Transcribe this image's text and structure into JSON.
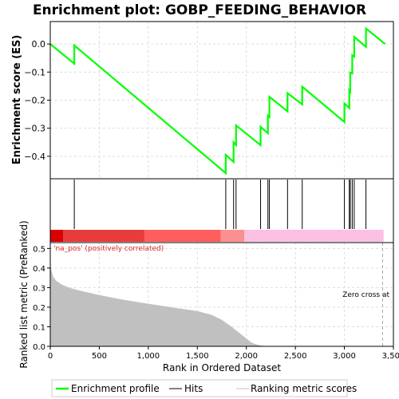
{
  "chart_data": {
    "title": "Enrichment plot: GOBP_FEEDING_BEHAVIOR",
    "xlabel": "Rank in Ordered Dataset",
    "xlim": [
      0,
      3500
    ],
    "xticks": [
      0,
      500,
      1000,
      1500,
      2000,
      2500,
      3000,
      3500
    ],
    "xtick_labels": [
      "0",
      "500",
      "1,000",
      "1,500",
      "2,000",
      "2,500",
      "3,000",
      "3,500"
    ],
    "panels": [
      {
        "name": "enrichment",
        "type": "line",
        "ylabel": "Enrichment score (ES)",
        "ylim": [
          -0.48,
          0.08
        ],
        "yticks": [
          -0.4,
          -0.3,
          -0.2,
          -0.1,
          0.0
        ],
        "ytick_labels": [
          "−0.4",
          "−0.3",
          "−0.2",
          "−0.1",
          "0.0"
        ],
        "grid": true,
        "series": [
          {
            "name": "Enrichment profile",
            "color": "#00ff00",
            "x": [
              0,
              245,
              245,
              1790,
              1790,
              1870,
              1870,
              1895,
              1895,
              2145,
              2145,
              2220,
              2220,
              2235,
              2235,
              2420,
              2420,
              2570,
              2570,
              3000,
              3000,
              3050,
              3050,
              3060,
              3060,
              3080,
              3080,
              3100,
              3100,
              3220,
              3220,
              3415
            ],
            "y": [
              0.0,
              -0.07,
              -0.005,
              -0.46,
              -0.395,
              -0.42,
              -0.35,
              -0.36,
              -0.29,
              -0.36,
              -0.295,
              -0.318,
              -0.255,
              -0.26,
              -0.188,
              -0.24,
              -0.175,
              -0.215,
              -0.152,
              -0.278,
              -0.212,
              -0.228,
              -0.165,
              -0.17,
              -0.102,
              -0.105,
              -0.04,
              -0.045,
              0.025,
              -0.01,
              0.055,
              0.0
            ]
          }
        ]
      },
      {
        "name": "hits",
        "type": "hits",
        "hit_ranks": [
          245,
          1790,
          1870,
          1895,
          2145,
          2220,
          2235,
          2420,
          2570,
          3000,
          3050,
          3060,
          3080,
          3100,
          3220
        ],
        "colorbar": [
          {
            "from": 0,
            "to": 130,
            "color": "#d90000"
          },
          {
            "from": 130,
            "to": 960,
            "color": "#e83c3c"
          },
          {
            "from": 960,
            "to": 1740,
            "color": "#fe5e5e"
          },
          {
            "from": 1740,
            "to": 1980,
            "color": "#fc8f8f"
          },
          {
            "from": 1980,
            "to": 3400,
            "color": "#fbc0e4"
          }
        ]
      },
      {
        "name": "ranked_metric",
        "type": "area",
        "ylabel": "Ranked list metric (PreRanked)",
        "ylim": [
          0,
          0.53
        ],
        "yticks": [
          0.0,
          0.1,
          0.2,
          0.3,
          0.4,
          0.5
        ],
        "ytick_labels": [
          "0.0",
          "0.1",
          "0.2",
          "0.3",
          "0.4",
          "0.5"
        ],
        "grid": true,
        "fill_color": "#c0c0c0",
        "x": [
          0,
          10,
          30,
          60,
          120,
          200,
          300,
          500,
          700,
          900,
          1100,
          1300,
          1500,
          1650,
          1750,
          1850,
          1950,
          2050,
          2100,
          2150,
          2200,
          2300,
          3400
        ],
        "y": [
          0.43,
          0.39,
          0.355,
          0.335,
          0.315,
          0.298,
          0.285,
          0.262,
          0.242,
          0.225,
          0.21,
          0.195,
          0.18,
          0.16,
          0.135,
          0.1,
          0.06,
          0.02,
          0.01,
          0.004,
          0.0015,
          0.0,
          0.0
        ],
        "annotations": [
          "'na_pos' (positively correlated)",
          "Zero cross at"
        ],
        "zero_cross_rank": 3390
      }
    ],
    "legend": {
      "placement": "bottom",
      "items": [
        {
          "label": "Enrichment profile",
          "color": "#00ff00",
          "style": "line"
        },
        {
          "label": "Hits",
          "color": "#000000",
          "style": "line"
        },
        {
          "label": "Ranking metric scores",
          "color": "#c0c0c0",
          "style": "line"
        }
      ]
    }
  }
}
